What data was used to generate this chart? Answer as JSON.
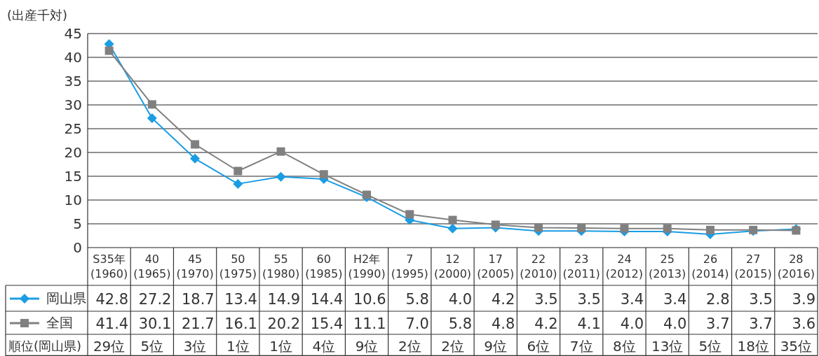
{
  "chart_data": {
    "type": "line",
    "ylabel": "(出産千対)",
    "categories": [
      "S35年\n(1960)",
      "40\n(1965)",
      "45\n(1970)",
      "50\n(1975)",
      "55\n(1980)",
      "60\n(1985)",
      "H2年\n(1990)",
      "7\n(1995)",
      "12\n(2000)",
      "17\n(2005)",
      "22\n(2010)",
      "23\n(2011)",
      "24\n(2012)",
      "25\n(2013)",
      "26\n(2014)",
      "27\n(2015)",
      "28\n(2016)"
    ],
    "series": [
      {
        "name": "岡山県",
        "color": "#1a9de3",
        "marker": "diamond",
        "values": [
          42.8,
          27.2,
          18.7,
          13.4,
          14.9,
          14.4,
          10.6,
          5.8,
          4.0,
          4.2,
          3.5,
          3.5,
          3.4,
          3.4,
          2.8,
          3.5,
          3.9
        ],
        "value_labels": [
          "42.8",
          "27.2",
          "18.7",
          "13.4",
          "14.9",
          "14.4",
          "10.6",
          "5.8",
          "4.0",
          "4.2",
          "3.5",
          "3.5",
          "3.4",
          "3.4",
          "2.8",
          "3.5",
          "3.9"
        ]
      },
      {
        "name": "全国",
        "color": "#808080",
        "marker": "square",
        "values": [
          41.4,
          30.1,
          21.7,
          16.1,
          20.2,
          15.4,
          11.1,
          7.0,
          5.8,
          4.8,
          4.2,
          4.1,
          4.0,
          4.0,
          3.7,
          3.7,
          3.6
        ],
        "value_labels": [
          "41.4",
          "30.1",
          "21.7",
          "16.1",
          "20.2",
          "15.4",
          "11.1",
          "7.0",
          "5.8",
          "4.8",
          "4.2",
          "4.1",
          "4.0",
          "4.0",
          "3.7",
          "3.7",
          "3.6"
        ]
      }
    ],
    "ylim": [
      0,
      45
    ],
    "yticks": [
      0,
      5,
      10,
      15,
      20,
      25,
      30,
      35,
      40,
      45
    ],
    "grid": "y",
    "legend": "bottom left",
    "annotations": [
      "順位(岡山県)",
      "29位",
      "5位",
      "3位",
      "1位",
      "1位",
      "4位",
      "9位",
      "2位",
      "2位",
      "9位",
      "6位",
      "7位",
      "8位",
      "13位",
      "5位",
      "18位",
      "35位"
    ]
  }
}
